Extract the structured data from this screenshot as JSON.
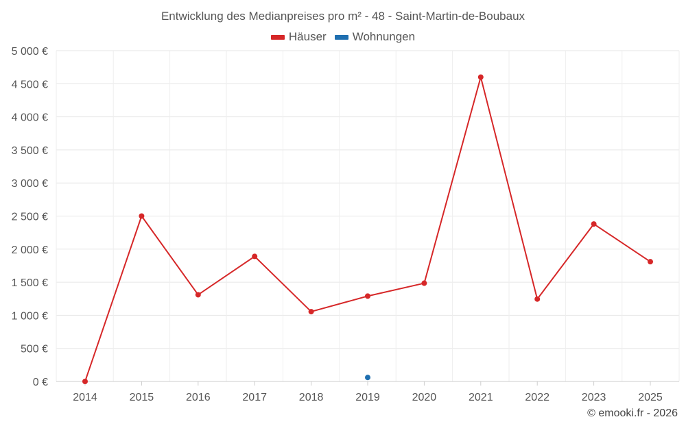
{
  "chart_data": {
    "type": "line",
    "title": "Entwicklung des Medianpreises pro m² - 48 - Saint-Martin-de-Boubaux",
    "categories": [
      "2014",
      "2015",
      "2016",
      "2017",
      "2018",
      "2019",
      "2020",
      "2021",
      "2022",
      "2023",
      "2025"
    ],
    "series": [
      {
        "name": "Häuser",
        "color": "#d62728",
        "values": [
          0,
          2500,
          1310,
          1890,
          1055,
          1290,
          1485,
          4600,
          1245,
          2380,
          1810
        ]
      },
      {
        "name": "Wohnungen",
        "color": "#1f6fb0",
        "values": [
          null,
          null,
          null,
          null,
          null,
          60,
          null,
          null,
          null,
          null,
          null
        ]
      }
    ],
    "ylim": [
      0,
      5000
    ],
    "yticks": [
      "0 €",
      "500 €",
      "1 000 €",
      "1 500 €",
      "2 000 €",
      "2 500 €",
      "3 000 €",
      "3 500 €",
      "4 000 €",
      "4 500 €",
      "5 000 €"
    ],
    "legend_position": "top-center",
    "grid": true
  },
  "credit": "© emooki.fr - 2026"
}
